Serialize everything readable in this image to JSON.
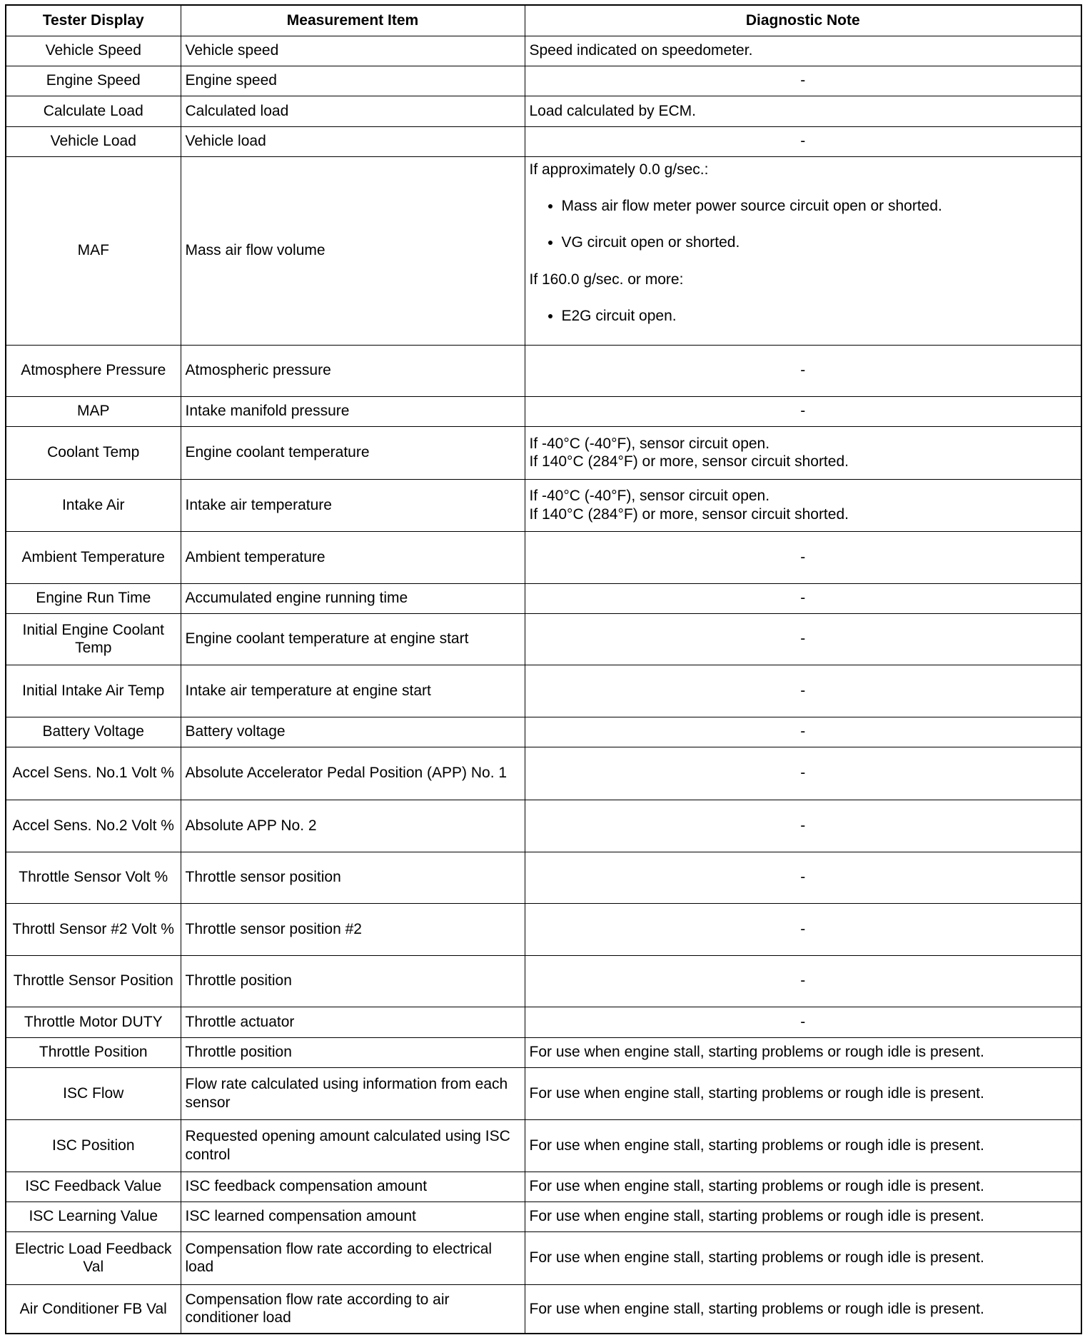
{
  "table": {
    "headers": [
      "Tester Display",
      "Measurement Item",
      "Diagnostic Note"
    ],
    "rows": [
      [
        "Vehicle Speed",
        "Vehicle speed",
        "Speed indicated on speedometer."
      ],
      [
        "Engine Speed",
        "Engine speed",
        "-"
      ],
      [
        "Calculate Load",
        "Calculated load",
        "Load calculated by ECM."
      ],
      [
        "Vehicle Load",
        "Vehicle load",
        "-"
      ],
      [
        "MAF",
        "Mass air flow volume",
        [
          {
            "heading": "If approximately 0.0 g/sec.:",
            "items": [
              "Mass air flow meter power source circuit open or shorted.",
              "VG circuit open or shorted."
            ]
          },
          {
            "heading": "If 160.0 g/sec. or more:",
            "items": [
              "E2G circuit open."
            ]
          }
        ]
      ],
      [
        "Atmosphere Pressure",
        "Atmospheric pressure",
        "-"
      ],
      [
        "MAP",
        "Intake manifold pressure",
        "-"
      ],
      [
        "Coolant Temp",
        "Engine coolant temperature",
        [
          "If -40°C (-40°F), sensor circuit open.",
          "If 140°C (284°F) or more, sensor circuit shorted."
        ]
      ],
      [
        "Intake Air",
        "Intake air temperature",
        [
          "If -40°C (-40°F), sensor circuit open.",
          "If 140°C (284°F) or more, sensor circuit shorted."
        ]
      ],
      [
        "Ambient Temperature",
        "Ambient temperature",
        "-"
      ],
      [
        "Engine Run Time",
        "Accumulated engine running time",
        "-"
      ],
      [
        "Initial Engine Coolant Temp",
        "Engine coolant temperature at engine start",
        "-"
      ],
      [
        "Initial Intake Air Temp",
        "Intake air temperature at engine start",
        "-"
      ],
      [
        "Battery Voltage",
        "Battery voltage",
        "-"
      ],
      [
        "Accel Sens. No.1 Volt %",
        "Absolute Accelerator Pedal Position (APP) No. 1",
        "-"
      ],
      [
        "Accel Sens. No.2 Volt %",
        "Absolute APP No. 2",
        "-"
      ],
      [
        "Throttle Sensor Volt %",
        "Throttle sensor position",
        "-"
      ],
      [
        "Throttl Sensor #2 Volt %",
        "Throttle sensor position #2",
        "-"
      ],
      [
        "Throttle Sensor Position",
        "Throttle position",
        "-"
      ],
      [
        "Throttle Motor DUTY",
        "Throttle actuator",
        "-"
      ],
      [
        "Throttle Position",
        "Throttle position",
        "For use when engine stall, starting problems or rough idle is present."
      ],
      [
        "ISC Flow",
        "Flow rate calculated using information from each sensor",
        "For use when engine stall, starting problems or rough idle is present."
      ],
      [
        "ISC Position",
        "Requested opening amount calculated using ISC control",
        "For use when engine stall, starting problems or rough idle is present."
      ],
      [
        "ISC Feedback Value",
        "ISC feedback compensation amount",
        "For use when engine stall, starting problems or rough idle is present."
      ],
      [
        "ISC Learning Value",
        "ISC learned compensation amount",
        "For use when engine stall, starting problems or rough idle is present."
      ],
      [
        "Electric Load Feedback Val",
        "Compensation flow rate according to electrical load",
        "For use when engine stall, starting problems or rough idle is present."
      ],
      [
        "Air Conditioner FB Val",
        "Compensation flow rate according to air conditioner load",
        "For use when engine stall, starting problems or rough idle is present."
      ]
    ]
  }
}
